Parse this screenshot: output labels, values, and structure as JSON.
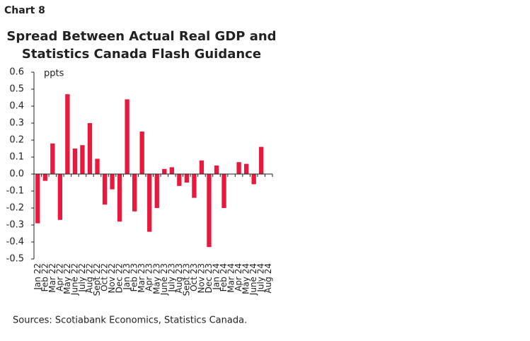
{
  "chart_data": {
    "type": "bar",
    "label": "Chart 8",
    "title": [
      "Spread Between Actual Real GDP and",
      "Statistics Canada Flash Guidance"
    ],
    "y_unit": "ppts",
    "source": "Sources: Scotiabank Economics, Statistics Canada.",
    "categories": [
      "Jan 22",
      "Feb 22",
      "Mar 22",
      "Apr 22",
      "May 22",
      "June 22",
      "July 22",
      "Aug 22",
      "Sept 22",
      "Oct 22",
      "Nov 22",
      "Dec 22",
      "Jan 23",
      "Feb 23",
      "Mar 23",
      "Apr 23",
      "May 23",
      "June 23",
      "July 23",
      "Aug 23",
      "Sept 23",
      "Oct 23",
      "Nov 23",
      "Dec 23",
      "Jan 24",
      "Feb 24",
      "Mar 24",
      "Apr 24",
      "May 24",
      "June 24",
      "July 24",
      "Aug 24"
    ],
    "values": [
      -0.29,
      -0.04,
      0.18,
      -0.27,
      0.47,
      0.15,
      0.17,
      0.3,
      0.09,
      -0.18,
      -0.09,
      -0.28,
      0.44,
      -0.22,
      0.25,
      -0.34,
      -0.2,
      0.03,
      0.04,
      -0.07,
      -0.05,
      -0.14,
      0.08,
      -0.43,
      0.05,
      -0.2,
      null,
      0.07,
      0.06,
      -0.06,
      0.16,
      null
    ],
    "color": "#e8193c",
    "ylim": [
      -0.5,
      0.6
    ],
    "yticks": [
      {
        "value": 0.6,
        "label": "0.6"
      },
      {
        "value": 0.5,
        "label": "0.5"
      },
      {
        "value": 0.4,
        "label": "0.4"
      },
      {
        "value": 0.3,
        "label": "0.3"
      },
      {
        "value": 0.2,
        "label": "0.2"
      },
      {
        "value": 0.1,
        "label": "0.1"
      },
      {
        "value": 0,
        "label": "0.0"
      },
      {
        "value": -0.1,
        "label": "-0.1"
      },
      {
        "value": -0.2,
        "label": "-0.2"
      },
      {
        "value": -0.3,
        "label": "-0.3"
      },
      {
        "value": -0.4,
        "label": "-0.4"
      },
      {
        "value": -0.5,
        "label": "-0.5"
      }
    ]
  }
}
